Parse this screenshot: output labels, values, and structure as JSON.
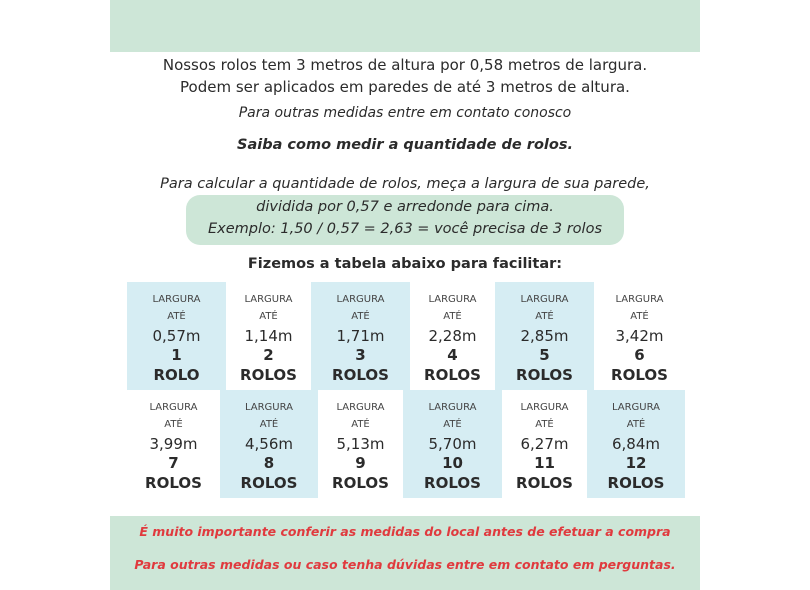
{
  "intro": {
    "line1": "Nossos rolos tem 3 metros de altura por 0,58 metros de largura.",
    "line2": "Podem ser aplicados em paredes de até 3 metros de altura.",
    "contact": "Para outras medidas entre em contato conosco",
    "heading": "Saiba como medir a quantidade de rolos.",
    "calc1": "Para calcular a quantidade de rolos, meça a largura de sua parede,",
    "calc2": "dividida por 0,57 e arredonde para cima.",
    "example": "Exemplo: 1,50 / 0,57 = 2,63 = você precisa de 3 rolos",
    "table_heading": "Fizemos a tabela abaixo para facilitar:"
  },
  "table": {
    "cells": [
      {
        "label1": "LARGURA",
        "label2": "ATÉ",
        "width": "0,57m",
        "count": "1",
        "unit": "ROLO"
      },
      {
        "label1": "LARGURA",
        "label2": "ATÉ",
        "width": "1,14m",
        "count": "2",
        "unit": "ROLOS"
      },
      {
        "label1": "LARGURA",
        "label2": "ATÉ",
        "width": "1,71m",
        "count": "3",
        "unit": "ROLOS"
      },
      {
        "label1": "LARGURA",
        "label2": "ATÉ",
        "width": "2,28m",
        "count": "4",
        "unit": "ROLOS"
      },
      {
        "label1": "LARGURA",
        "label2": "ATÉ",
        "width": "2,85m",
        "count": "5",
        "unit": "ROLOS"
      },
      {
        "label1": "LARGURA",
        "label2": "ATÉ",
        "width": "3,42m",
        "count": "6",
        "unit": "ROLOS"
      },
      {
        "label1": "LARGURA",
        "label2": "ATÉ",
        "width": "3,99m",
        "count": "7",
        "unit": "ROLOS"
      },
      {
        "label1": "LARGURA",
        "label2": "ATÉ",
        "width": "4,56m",
        "count": "8",
        "unit": "ROLOS"
      },
      {
        "label1": "LARGURA",
        "label2": "ATÉ",
        "width": "5,13m",
        "count": "9",
        "unit": "ROLOS"
      },
      {
        "label1": "LARGURA",
        "label2": "ATÉ",
        "width": "5,70m",
        "count": "10",
        "unit": "ROLOS"
      },
      {
        "label1": "LARGURA",
        "label2": "ATÉ",
        "width": "6,27m",
        "count": "11",
        "unit": "ROLOS"
      },
      {
        "label1": "LARGURA",
        "label2": "ATÉ",
        "width": "6,84m",
        "count": "12",
        "unit": "ROLOS"
      }
    ]
  },
  "footer": {
    "warning1": "É muito importante conferir as medidas do local antes de efetuar a compra",
    "warning2": "Para outras medidas ou caso tenha dúvidas entre em contato em perguntas."
  },
  "colors": {
    "green_band": "#cde6d7",
    "blue_cell": "#d6edf3",
    "warning_red": "#e03a3e"
  }
}
